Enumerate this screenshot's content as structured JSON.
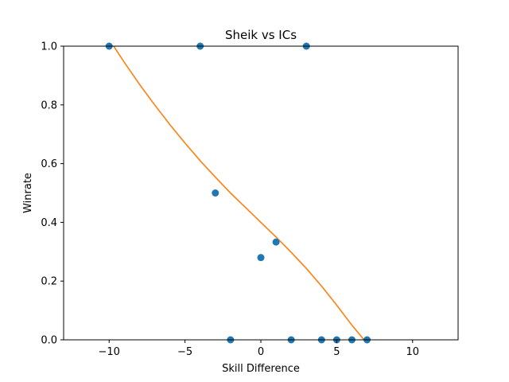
{
  "chart_data": {
    "type": "scatter",
    "title": "Sheik vs ICs",
    "xlabel": "Skill Difference",
    "ylabel": "Winrate",
    "xlim": [
      -13,
      13
    ],
    "ylim": [
      0,
      1
    ],
    "xticks": [
      -10,
      -5,
      0,
      5,
      10
    ],
    "xtick_labels": [
      "−10",
      "−5",
      "0",
      "5",
      "10"
    ],
    "yticks": [
      0,
      0.2,
      0.4,
      0.6,
      0.8,
      1
    ],
    "ytick_labels": [
      "0.0",
      "0.2",
      "0.4",
      "0.6",
      "0.8",
      "1.0"
    ],
    "grid": false,
    "legend": "none",
    "series": [
      {
        "kind": "scatter",
        "color": "#1f77b4",
        "x": [
          -10,
          -4,
          3,
          -3,
          1,
          0,
          -2,
          2,
          4,
          5,
          6,
          7
        ],
        "y": [
          1.0,
          1.0,
          1.0,
          0.5,
          0.333,
          0.28,
          0.0,
          0.0,
          0.0,
          0.0,
          0.0,
          0.0
        ]
      },
      {
        "kind": "line",
        "color": "#ff7f0e",
        "x": [
          -9.7,
          -9,
          -8,
          -7,
          -6,
          -5,
          -4,
          -3,
          -2,
          -1,
          0,
          1,
          2,
          3,
          4,
          5,
          6,
          6.8
        ],
        "y": [
          1.0,
          0.945,
          0.87,
          0.8,
          0.733,
          0.67,
          0.61,
          0.554,
          0.5,
          0.45,
          0.4,
          0.35,
          0.298,
          0.243,
          0.183,
          0.118,
          0.05,
          0.0
        ]
      }
    ]
  }
}
